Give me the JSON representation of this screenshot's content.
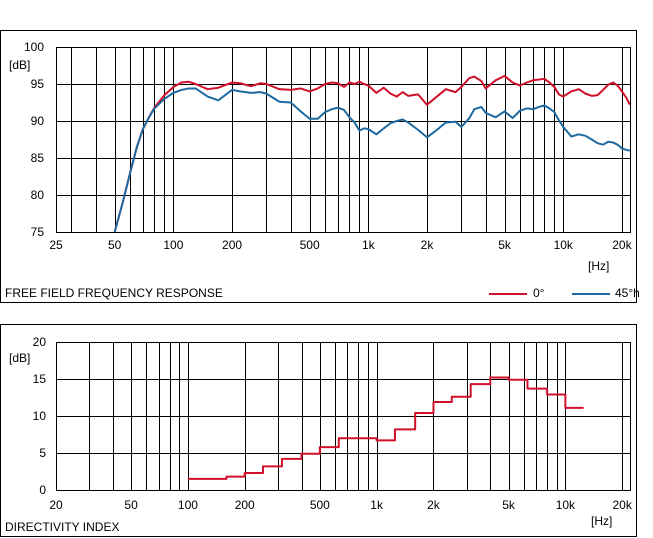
{
  "chart_data": [
    {
      "type": "line",
      "title": "FREE FIELD FREQUENCY RESPONSE",
      "ylabel": "[dB]",
      "xlabel": "[Hz]",
      "xscale": "log",
      "xlim": [
        25,
        22000
      ],
      "ylim": [
        75,
        100
      ],
      "y_ticks": [
        75,
        80,
        85,
        90,
        95,
        100
      ],
      "x_ticks": [
        {
          "value": 25,
          "label": "25"
        },
        {
          "value": 50,
          "label": "50"
        },
        {
          "value": 100,
          "label": "100"
        },
        {
          "value": 200,
          "label": "200"
        },
        {
          "value": 500,
          "label": "500"
        },
        {
          "value": 1000,
          "label": "1k"
        },
        {
          "value": 2000,
          "label": "2k"
        },
        {
          "value": 5000,
          "label": "5k"
        },
        {
          "value": 10000,
          "label": "10k"
        },
        {
          "value": 20000,
          "label": "20k"
        }
      ],
      "grid": true,
      "legend_position": "bottom-right",
      "series": [
        {
          "name": "0°",
          "color": "#d0102a",
          "x": [
            50,
            55,
            60,
            65,
            70,
            75,
            80,
            90,
            100,
            110,
            120,
            130,
            150,
            170,
            200,
            220,
            250,
            280,
            300,
            350,
            400,
            450,
            500,
            550,
            600,
            650,
            700,
            750,
            800,
            850,
            900,
            950,
            1000,
            1100,
            1200,
            1300,
            1400,
            1500,
            1600,
            1800,
            2000,
            2200,
            2500,
            2800,
            3000,
            3300,
            3500,
            3800,
            4000,
            4500,
            5000,
            5500,
            6000,
            6500,
            7000,
            7500,
            8000,
            8500,
            9000,
            9500,
            10000,
            11000,
            12000,
            13000,
            14000,
            15000,
            16000,
            17000,
            18000,
            19000,
            20000,
            21000,
            22000
          ],
          "y": [
            75,
            79,
            83,
            86.5,
            89,
            90.5,
            91.8,
            93.5,
            94.6,
            95.2,
            95.3,
            95,
            94.3,
            94.5,
            95.2,
            95.1,
            94.7,
            95.1,
            95,
            94.3,
            94.2,
            94.4,
            94,
            94.4,
            95,
            95.2,
            95.1,
            94.6,
            95.2,
            95,
            95.3,
            95,
            94.8,
            93.8,
            94.5,
            93.7,
            93.3,
            93.9,
            93.4,
            93.6,
            92.2,
            93.1,
            94.3,
            93.9,
            94.6,
            95.8,
            96,
            95.4,
            94.4,
            95.5,
            96.1,
            95.2,
            94.8,
            95.2,
            95.5,
            95.6,
            95.7,
            95.2,
            94.6,
            93.6,
            93.3,
            94,
            94.3,
            93.7,
            93.4,
            93.5,
            94.2,
            94.9,
            95.2,
            94.8,
            94,
            93.2,
            92.2
          ]
        },
        {
          "name": "45°h",
          "color": "#1e6aa0",
          "x": [
            50,
            55,
            60,
            65,
            70,
            75,
            80,
            90,
            100,
            110,
            120,
            130,
            150,
            170,
            200,
            220,
            250,
            280,
            300,
            350,
            400,
            450,
            500,
            550,
            600,
            650,
            700,
            750,
            800,
            850,
            900,
            950,
            1000,
            1100,
            1200,
            1300,
            1400,
            1500,
            1600,
            1800,
            2000,
            2200,
            2500,
            2800,
            3000,
            3300,
            3500,
            3800,
            4000,
            4500,
            5000,
            5500,
            6000,
            6500,
            7000,
            7500,
            8000,
            8500,
            9000,
            9500,
            10000,
            11000,
            12000,
            13000,
            14000,
            15000,
            16000,
            17000,
            18000,
            19000,
            20000,
            21000,
            22000
          ],
          "y": [
            75,
            79,
            83,
            86.5,
            89,
            90.5,
            91.7,
            93,
            93.8,
            94.2,
            94.4,
            94.4,
            93.3,
            92.8,
            94.2,
            94,
            93.8,
            93.9,
            93.7,
            92.6,
            92.5,
            91.3,
            90.3,
            90.3,
            91.2,
            91.6,
            91.8,
            91.5,
            90.5,
            89.8,
            88.7,
            89,
            88.9,
            88.2,
            89,
            89.7,
            90,
            90.2,
            89.8,
            88.8,
            87.8,
            88.6,
            89.8,
            89.9,
            89.2,
            90.4,
            91.6,
            91.9,
            91.1,
            90.5,
            91.3,
            90.4,
            91.4,
            91.7,
            91.6,
            91.9,
            92.1,
            91.7,
            91.2,
            90.1,
            89.2,
            87.9,
            88.2,
            88,
            87.5,
            87,
            86.8,
            87.2,
            87.1,
            86.8,
            86.3,
            86.1,
            86
          ]
        }
      ]
    },
    {
      "type": "line",
      "title": "DIRECTIVITY INDEX",
      "ylabel": "[dB]",
      "xlabel": "[Hz]",
      "xscale": "log",
      "step": true,
      "xlim": [
        20,
        22000
      ],
      "ylim": [
        0,
        20
      ],
      "y_ticks": [
        0,
        5,
        10,
        15,
        20
      ],
      "x_ticks": [
        {
          "value": 20,
          "label": "20"
        },
        {
          "value": 50,
          "label": "50"
        },
        {
          "value": 100,
          "label": "100"
        },
        {
          "value": 200,
          "label": "200"
        },
        {
          "value": 500,
          "label": "500"
        },
        {
          "value": 1000,
          "label": "1k"
        },
        {
          "value": 2000,
          "label": "2k"
        },
        {
          "value": 5000,
          "label": "5k"
        },
        {
          "value": 10000,
          "label": "10k"
        },
        {
          "value": 20000,
          "label": "20k"
        }
      ],
      "grid": true,
      "series": [
        {
          "color": "#d0102a",
          "x": [
            100,
            125,
            160,
            200,
            250,
            315,
            400,
            500,
            630,
            800,
            1000,
            1250,
            1600,
            2000,
            2500,
            3150,
            4000,
            5000,
            6300,
            8000,
            10000
          ],
          "y": [
            1.5,
            1.5,
            1.8,
            2.3,
            3.2,
            4.2,
            4.9,
            5.8,
            7.0,
            7.0,
            6.7,
            8.2,
            10.4,
            11.9,
            12.6,
            14.3,
            15.2,
            14.9,
            13.7,
            12.9,
            11.1
          ]
        }
      ]
    }
  ]
}
